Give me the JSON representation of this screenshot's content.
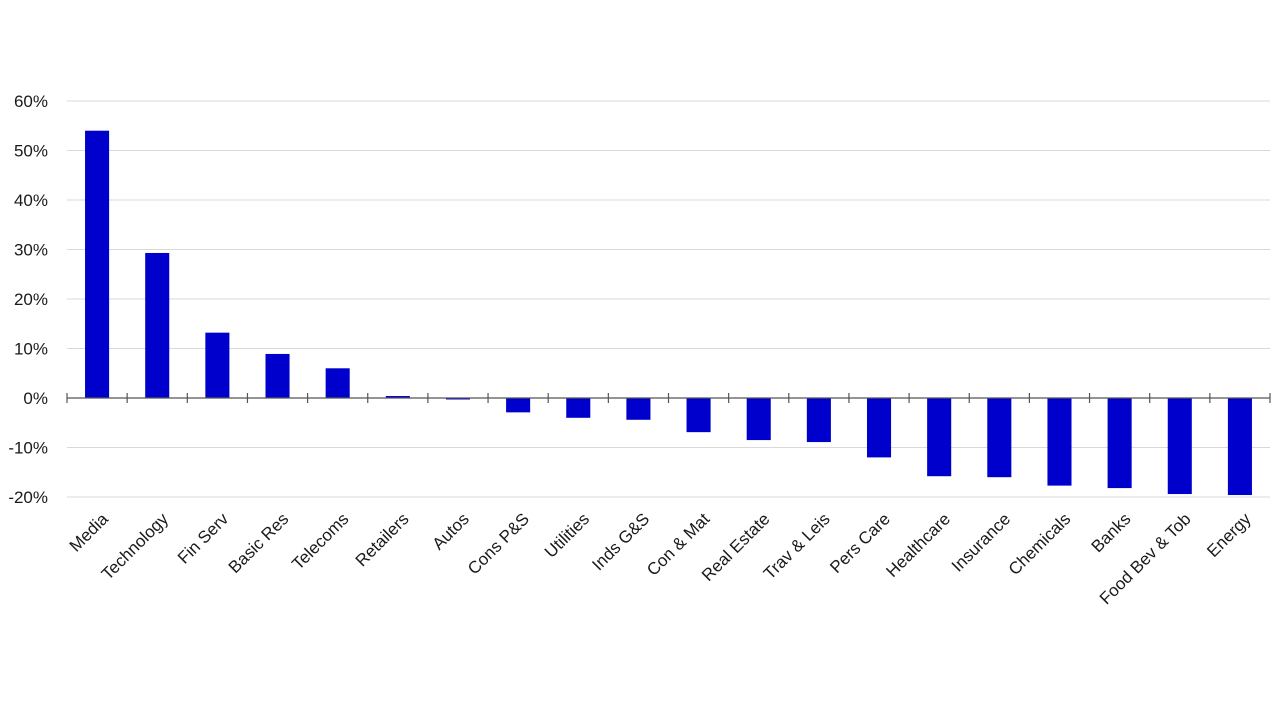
{
  "chart_data": {
    "type": "bar",
    "categories": [
      "Media",
      "Technology",
      "Fin Serv",
      "Basic Res",
      "Telecoms",
      "Retailers",
      "Autos",
      "Cons P&S",
      "Utilities",
      "Inds G&S",
      "Con & Mat",
      "Real Estate",
      "Trav & Leis",
      "Pers Care",
      "Healthcare",
      "Insurance",
      "Chemicals",
      "Banks",
      "Food Bev & Tob",
      "Energy"
    ],
    "values": [
      54,
      29.3,
      13.2,
      8.9,
      6,
      0.4,
      -0.3,
      -2.9,
      -4,
      -4.4,
      -6.9,
      -8.5,
      -8.9,
      -12,
      -15.8,
      -16,
      -17.7,
      -18.2,
      -19.4,
      -19.6
    ],
    "yticks": [
      "60%",
      "50%",
      "40%",
      "30%",
      "20%",
      "10%",
      "0%",
      "-10%",
      "-20%"
    ],
    "ytick_values": [
      60,
      50,
      40,
      30,
      20,
      10,
      0,
      -10,
      -20
    ],
    "ylim": [
      -20,
      60
    ],
    "grid": true,
    "bar_color": "#0000CC",
    "gridline_color": "#D9D9D9",
    "axis_color": "#555555",
    "title": "",
    "xlabel": "",
    "ylabel": ""
  }
}
